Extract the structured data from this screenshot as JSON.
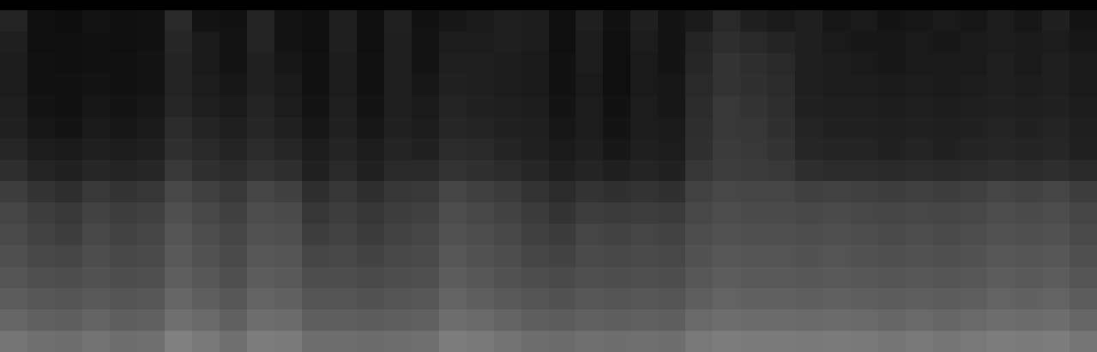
{
  "chart_data": {
    "type": "heatmap",
    "tick_labels": false,
    "zlim": [
      0,
      100
    ],
    "cells": [
      [
        14,
        6,
        5,
        8,
        6,
        7,
        16,
        8,
        7,
        14,
        8,
        6,
        12,
        6,
        13,
        7,
        9,
        10,
        12,
        11,
        6,
        12,
        7,
        12,
        8,
        10,
        16,
        12,
        10,
        12,
        9,
        10,
        8,
        9,
        10,
        9,
        11,
        9,
        12,
        8
      ],
      [
        12,
        6,
        6,
        7,
        6,
        7,
        15,
        10,
        8,
        14,
        8,
        6,
        12,
        6,
        12,
        8,
        11,
        11,
        12,
        11,
        6,
        11,
        6,
        11,
        8,
        14,
        18,
        16,
        14,
        12,
        10,
        9,
        9,
        10,
        9,
        10,
        11,
        10,
        11,
        9
      ],
      [
        11,
        7,
        6,
        7,
        7,
        8,
        14,
        10,
        8,
        13,
        9,
        7,
        11,
        7,
        12,
        8,
        12,
        12,
        11,
        10,
        7,
        11,
        6,
        10,
        8,
        15,
        20,
        18,
        16,
        12,
        11,
        10,
        9,
        10,
        10,
        10,
        12,
        10,
        12,
        10
      ],
      [
        11,
        7,
        7,
        8,
        7,
        8,
        14,
        11,
        9,
        13,
        10,
        7,
        11,
        7,
        12,
        9,
        13,
        12,
        11,
        10,
        7,
        10,
        6,
        10,
        9,
        16,
        20,
        19,
        17,
        12,
        11,
        11,
        10,
        11,
        10,
        11,
        12,
        11,
        12,
        10
      ],
      [
        12,
        8,
        7,
        9,
        8,
        9,
        15,
        12,
        10,
        14,
        11,
        8,
        12,
        8,
        12,
        10,
        14,
        13,
        12,
        11,
        8,
        11,
        7,
        11,
        9,
        17,
        22,
        20,
        18,
        13,
        12,
        12,
        11,
        12,
        11,
        12,
        13,
        12,
        13,
        11
      ],
      [
        13,
        9,
        8,
        10,
        9,
        10,
        17,
        14,
        12,
        15,
        13,
        9,
        13,
        9,
        13,
        11,
        15,
        14,
        13,
        12,
        9,
        11,
        8,
        11,
        10,
        18,
        22,
        21,
        19,
        14,
        13,
        13,
        12,
        13,
        12,
        13,
        14,
        13,
        14,
        12
      ],
      [
        15,
        11,
        10,
        12,
        11,
        12,
        19,
        16,
        14,
        17,
        15,
        11,
        14,
        11,
        14,
        13,
        17,
        16,
        14,
        13,
        10,
        12,
        9,
        12,
        11,
        19,
        23,
        22,
        20,
        15,
        14,
        14,
        13,
        14,
        13,
        14,
        15,
        14,
        15,
        13
      ],
      [
        18,
        14,
        13,
        15,
        14,
        15,
        22,
        19,
        17,
        20,
        18,
        13,
        16,
        13,
        16,
        16,
        20,
        19,
        17,
        15,
        12,
        14,
        12,
        14,
        13,
        21,
        24,
        23,
        22,
        18,
        17,
        17,
        16,
        17,
        16,
        17,
        18,
        17,
        18,
        16
      ],
      [
        24,
        20,
        18,
        22,
        20,
        21,
        28,
        25,
        22,
        27,
        25,
        18,
        21,
        18,
        21,
        22,
        27,
        25,
        23,
        20,
        17,
        20,
        19,
        20,
        19,
        26,
        28,
        27,
        27,
        25,
        26,
        25,
        24,
        25,
        24,
        25,
        27,
        26,
        27,
        24
      ],
      [
        27,
        24,
        22,
        26,
        24,
        25,
        31,
        28,
        25,
        30,
        29,
        21,
        24,
        21,
        24,
        25,
        30,
        28,
        26,
        23,
        20,
        24,
        23,
        24,
        23,
        28,
        30,
        29,
        29,
        28,
        29,
        28,
        27,
        28,
        27,
        28,
        30,
        29,
        30,
        27
      ],
      [
        29,
        26,
        24,
        28,
        26,
        27,
        33,
        30,
        27,
        32,
        31,
        24,
        26,
        23,
        26,
        27,
        32,
        30,
        28,
        25,
        23,
        27,
        26,
        27,
        26,
        30,
        32,
        31,
        31,
        30,
        31,
        30,
        29,
        30,
        29,
        30,
        32,
        31,
        32,
        29
      ],
      [
        31,
        28,
        27,
        30,
        28,
        29,
        35,
        32,
        29,
        34,
        33,
        27,
        28,
        26,
        28,
        29,
        34,
        32,
        30,
        27,
        26,
        29,
        28,
        29,
        28,
        32,
        34,
        33,
        33,
        32,
        33,
        32,
        31,
        32,
        31,
        32,
        34,
        33,
        34,
        31
      ],
      [
        33,
        31,
        30,
        32,
        30,
        31,
        37,
        34,
        31,
        36,
        35,
        30,
        30,
        29,
        30,
        31,
        36,
        34,
        32,
        30,
        29,
        31,
        30,
        31,
        30,
        34,
        36,
        35,
        35,
        34,
        35,
        34,
        33,
        34,
        33,
        34,
        36,
        35,
        36,
        33
      ],
      [
        36,
        34,
        33,
        35,
        33,
        34,
        40,
        37,
        34,
        39,
        38,
        33,
        33,
        32,
        33,
        34,
        39,
        37,
        35,
        33,
        32,
        34,
        33,
        34,
        33,
        37,
        39,
        38,
        38,
        37,
        38,
        37,
        36,
        37,
        36,
        37,
        39,
        38,
        39,
        36
      ],
      [
        40,
        38,
        37,
        39,
        37,
        38,
        44,
        41,
        38,
        43,
        42,
        37,
        37,
        36,
        37,
        38,
        43,
        41,
        39,
        37,
        36,
        38,
        37,
        38,
        37,
        41,
        43,
        42,
        42,
        41,
        42,
        41,
        40,
        41,
        40,
        41,
        43,
        42,
        43,
        40
      ],
      [
        46,
        44,
        43,
        45,
        43,
        44,
        50,
        47,
        44,
        49,
        48,
        43,
        43,
        42,
        43,
        44,
        49,
        47,
        45,
        43,
        42,
        44,
        43,
        44,
        43,
        47,
        49,
        48,
        48,
        47,
        48,
        47,
        46,
        47,
        46,
        47,
        49,
        48,
        49,
        46
      ]
    ]
  }
}
